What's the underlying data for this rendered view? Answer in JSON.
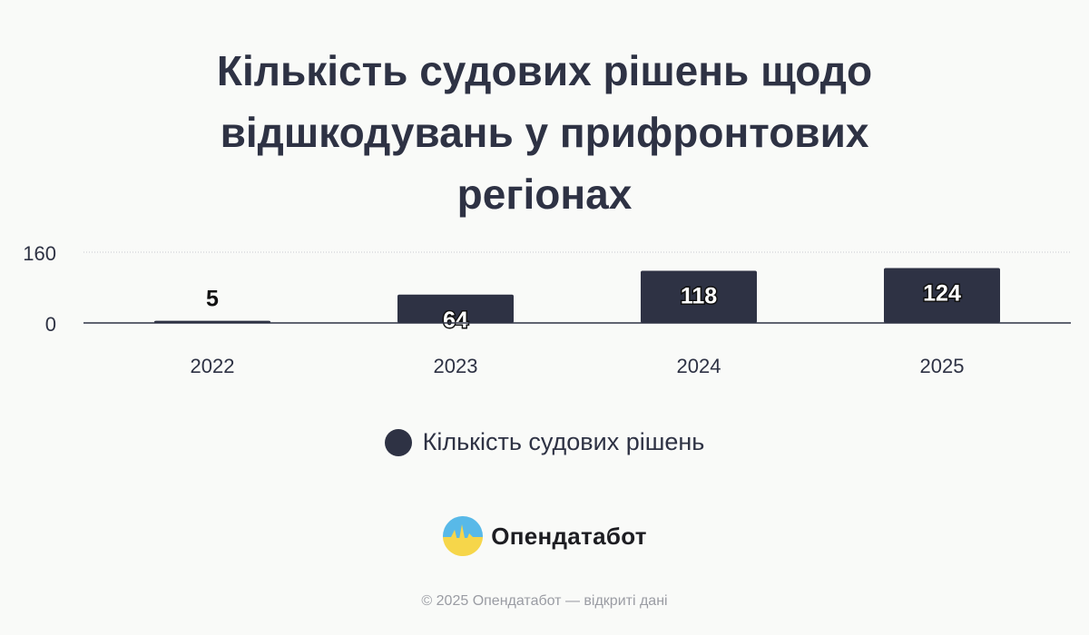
{
  "chart_data": {
    "type": "bar",
    "title": "Кількість судових рішень щодо відшкодувань у прифронтових регіонах",
    "categories": [
      "2022",
      "2023",
      "2024",
      "2025"
    ],
    "series": [
      {
        "name": "Кількість судових рішень",
        "values": [
          5,
          64,
          118,
          124
        ],
        "color": "#2e3244"
      }
    ],
    "y_ticks": [
      "0",
      "160"
    ],
    "ylim": [
      0,
      160
    ],
    "xlabel": "",
    "ylabel": "",
    "grid": true,
    "legend_position": "bottom-center",
    "data_labels": true
  },
  "branding": {
    "name": "Опендатабот",
    "icon": "opendatabot-logo"
  },
  "footer": {
    "text": "© 2025 Опендатабот — відкриті дані"
  }
}
